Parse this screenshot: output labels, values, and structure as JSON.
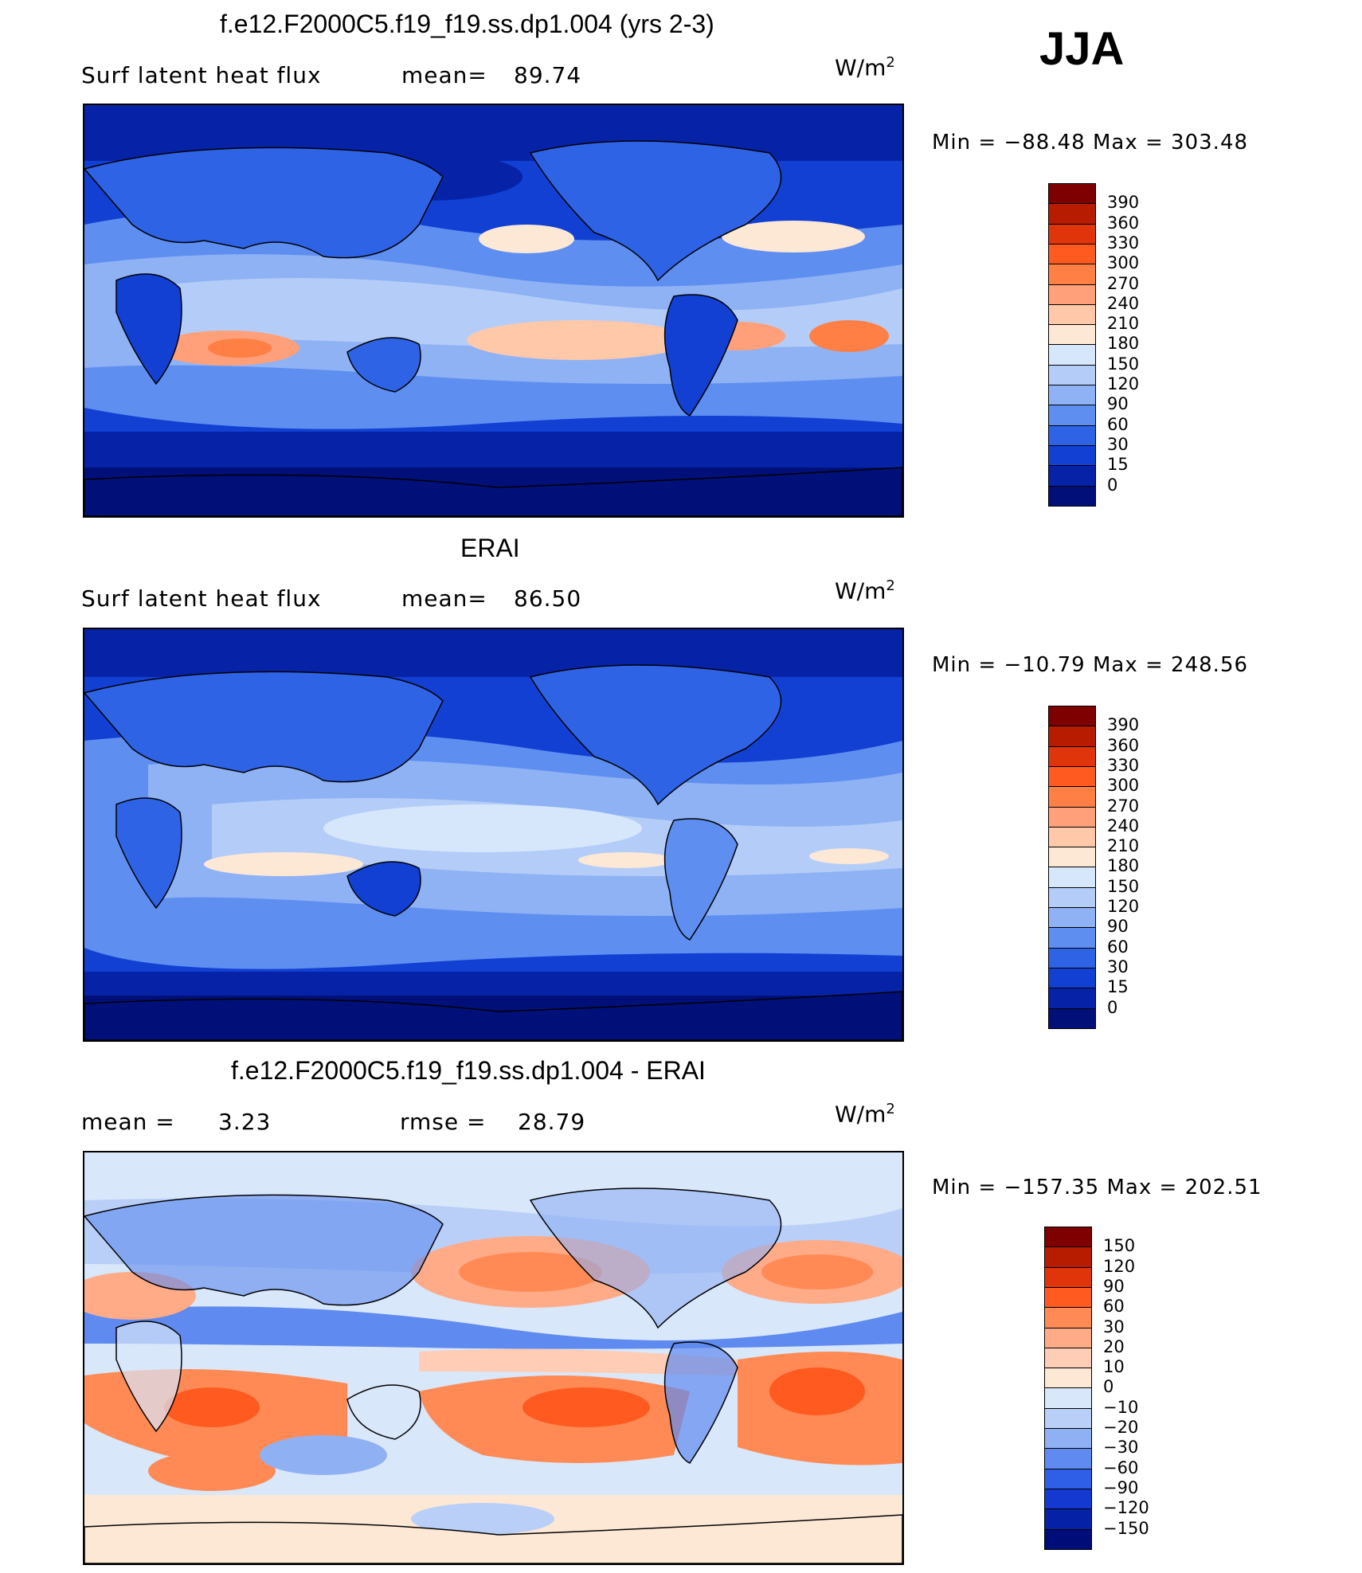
{
  "season": "JJA",
  "panels": [
    {
      "id": "model",
      "title": "f.e12.F2000C5.f19_f19.ss.dp1.004 (yrs 2-3)",
      "left_label": "Surf latent heat flux",
      "stat_label": "mean=",
      "stat_value": "89.74",
      "units": "W/m",
      "units_sup": "2",
      "min_label": "Min",
      "min_value": "−88.48",
      "max_label": "Max",
      "max_value": "303.48",
      "ticks": [
        "390",
        "360",
        "330",
        "300",
        "270",
        "240",
        "210",
        "180",
        "150",
        "120",
        "90",
        "60",
        "30",
        "15",
        "0"
      ]
    },
    {
      "id": "obs",
      "title": "ERAI",
      "left_label": "Surf latent heat flux",
      "stat_label": "mean=",
      "stat_value": "86.50",
      "units": "W/m",
      "units_sup": "2",
      "min_label": "Min",
      "min_value": "−10.79",
      "max_label": "Max",
      "max_value": "248.56",
      "ticks": [
        "390",
        "360",
        "330",
        "300",
        "270",
        "240",
        "210",
        "180",
        "150",
        "120",
        "90",
        "60",
        "30",
        "15",
        "0"
      ]
    },
    {
      "id": "diff",
      "title": "f.e12.F2000C5.f19_f19.ss.dp1.004 - ERAI",
      "left_label": "mean =",
      "left_value": "3.23",
      "stat_label": "rmse =",
      "stat_value": "28.79",
      "units": "W/m",
      "units_sup": "2",
      "min_label": "Min",
      "min_value": "−157.35",
      "max_label": "Max",
      "max_value": "202.51",
      "ticks": [
        "150",
        "120",
        "90",
        "60",
        "30",
        "20",
        "10",
        "0",
        "−10",
        "−20",
        "−30",
        "−60",
        "−90",
        "−120",
        "−150"
      ]
    }
  ],
  "colors": {
    "abs_scale": [
      "#7f0000",
      "#b71c00",
      "#e0340a",
      "#ff5a1f",
      "#ff7f45",
      "#ffa07a",
      "#ffc8a8",
      "#fde8d6",
      "#d6e6fb",
      "#b4cdf8",
      "#8fb2f5",
      "#5e8ef0",
      "#2f63e6",
      "#1240d3",
      "#0623a8",
      "#001078"
    ],
    "diff_scale": [
      "#7f0000",
      "#b71c00",
      "#e0340a",
      "#ff5a1f",
      "#ff8a55",
      "#ffab88",
      "#ffcdb5",
      "#fde8d6",
      "#d9e7fb",
      "#b9cff7",
      "#8fb0f3",
      "#5f8aef",
      "#2f5fe6",
      "#1439d0",
      "#0521a6",
      "#000c78"
    ]
  }
}
